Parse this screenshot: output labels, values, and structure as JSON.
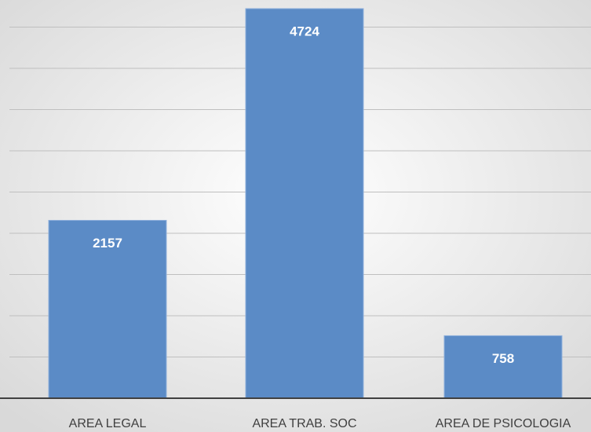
{
  "chart_data": {
    "type": "bar",
    "categories": [
      "AREA LEGAL",
      "AREA TRAB. SOC",
      "AREA DE PSICOLOGIA"
    ],
    "values": [
      2157,
      4724,
      758
    ],
    "color": "#5b8bc6",
    "ylim": [
      0,
      5000
    ],
    "yticks": [
      0,
      500,
      1000,
      1500,
      2000,
      2500,
      3000,
      3500,
      4000,
      4500,
      5000
    ],
    "grid": true
  }
}
